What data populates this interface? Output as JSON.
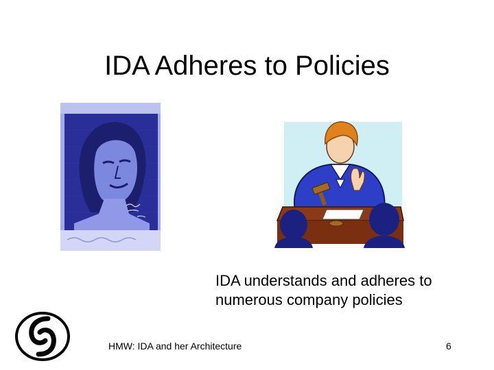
{
  "slide": {
    "title": "IDA Adheres to Policies",
    "body_lines": [
      "IDA understands and adheres to",
      "numerous company policies"
    ]
  },
  "footer": {
    "left_text": "HMW: IDA and her Architecture",
    "page_number": "6"
  },
  "colors": {
    "mural_blue": "#2c2f9c",
    "mural_light": "#8d97e6",
    "judge_robe": "#2e3fc7",
    "judge_hair": "#e0821c",
    "panel_bg": "#cfeff5",
    "bench": "#8a3a16"
  },
  "icons": [
    "mural-portrait",
    "judge-clipart",
    "logo-mark"
  ]
}
